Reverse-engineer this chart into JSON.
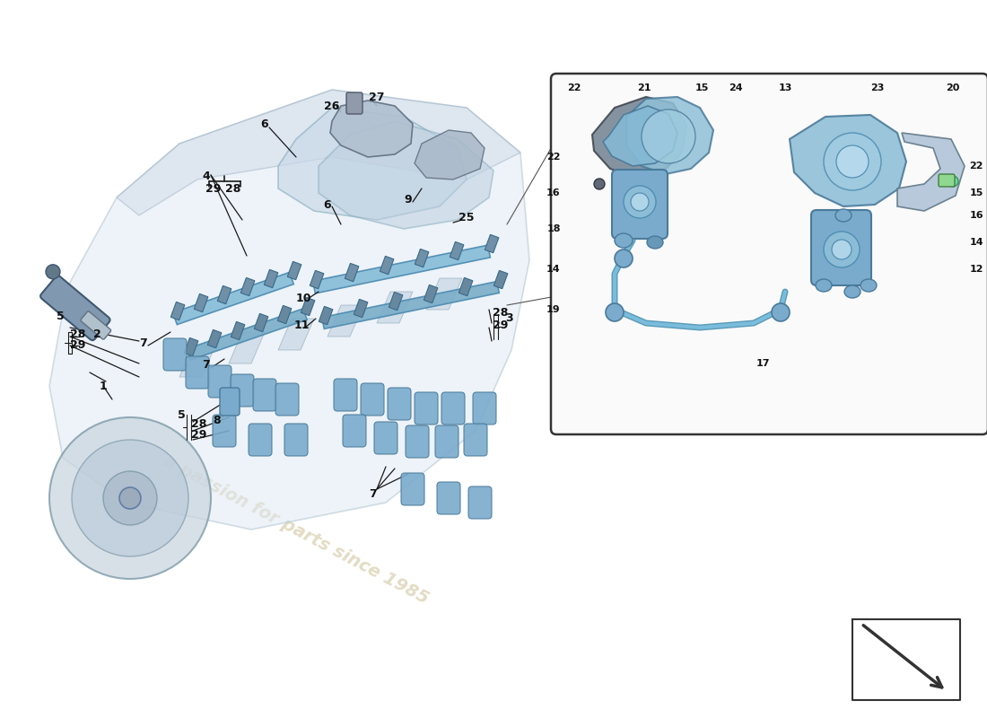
{
  "bg_color": "#ffffff",
  "engine_body_color": "#dce8f0",
  "engine_edge_color": "#aabbcc",
  "fuel_rail_color": "#90bdd4",
  "fuel_rail_edge": "#5a8fa8",
  "injector_color": "#7aabcc",
  "injector_edge": "#4a7a9a",
  "cap_color": "#7aabcc",
  "coil_color": "#b0c0d0",
  "dark_line": "#1a1a1a",
  "label_color": "#111111",
  "watermark_color": "#e0d8be",
  "inset_bg": "#fafafa",
  "inset_border": "#333333",
  "pump_color": "#85b8d0",
  "pump_edge": "#4a7a9a",
  "pipe_color": "#7aabcc",
  "arrow_color": "#333333",
  "bracket_color": "#1a1a1a"
}
